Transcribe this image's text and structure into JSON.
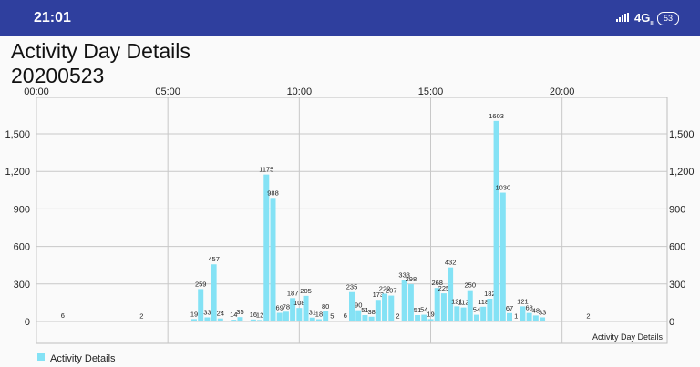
{
  "status_bar": {
    "time": "21:01",
    "network": "4G",
    "network_sub": "ll",
    "battery": "53"
  },
  "page": {
    "title": "Activity Day Details",
    "subtitle": "20200523"
  },
  "chart_data": {
    "type": "bar",
    "x_ticks": [
      "00:00",
      "05:00",
      "10:00",
      "15:00",
      "20:00"
    ],
    "y_ticks": [
      "0",
      "300",
      "600",
      "900",
      "1,200",
      "1,500"
    ],
    "ylim": [
      0,
      1700
    ],
    "xlim_minutes": [
      0,
      1440
    ],
    "description": "Activity Day Details",
    "legend": "Activity Details",
    "color": "#84e2f5",
    "points": [
      {
        "t": "01:00",
        "v": 6
      },
      {
        "t": "04:00",
        "v": 2
      },
      {
        "t": "06:00",
        "v": 19
      },
      {
        "t": "06:15",
        "v": 259
      },
      {
        "t": "06:30",
        "v": 33
      },
      {
        "t": "06:45",
        "v": 457
      },
      {
        "t": "07:00",
        "v": 24
      },
      {
        "t": "07:30",
        "v": 14
      },
      {
        "t": "07:45",
        "v": 35
      },
      {
        "t": "08:15",
        "v": 16
      },
      {
        "t": "08:30",
        "v": 12
      },
      {
        "t": "08:45",
        "v": 1175
      },
      {
        "t": "09:00",
        "v": 988
      },
      {
        "t": "09:15",
        "v": 69
      },
      {
        "t": "09:30",
        "v": 78
      },
      {
        "t": "09:45",
        "v": 187
      },
      {
        "t": "10:00",
        "v": 108
      },
      {
        "t": "10:15",
        "v": 205
      },
      {
        "t": "10:30",
        "v": 31
      },
      {
        "t": "10:45",
        "v": 18
      },
      {
        "t": "11:00",
        "v": 80
      },
      {
        "t": "11:15",
        "v": 5
      },
      {
        "t": "11:45",
        "v": 6
      },
      {
        "t": "12:00",
        "v": 235
      },
      {
        "t": "12:15",
        "v": 90
      },
      {
        "t": "12:30",
        "v": 51
      },
      {
        "t": "12:45",
        "v": 38
      },
      {
        "t": "13:00",
        "v": 173
      },
      {
        "t": "13:15",
        "v": 222
      },
      {
        "t": "13:30",
        "v": 207
      },
      {
        "t": "13:45",
        "v": 2
      },
      {
        "t": "14:00",
        "v": 333
      },
      {
        "t": "14:15",
        "v": 298
      },
      {
        "t": "14:30",
        "v": 51
      },
      {
        "t": "14:45",
        "v": 54
      },
      {
        "t": "15:00",
        "v": 19
      },
      {
        "t": "15:15",
        "v": 268
      },
      {
        "t": "15:30",
        "v": 225
      },
      {
        "t": "15:45",
        "v": 432
      },
      {
        "t": "16:00",
        "v": 121
      },
      {
        "t": "16:15",
        "v": 112
      },
      {
        "t": "16:30",
        "v": 250
      },
      {
        "t": "16:45",
        "v": 54
      },
      {
        "t": "17:00",
        "v": 118
      },
      {
        "t": "17:15",
        "v": 182
      },
      {
        "t": "17:30",
        "v": 1603
      },
      {
        "t": "17:45",
        "v": 1030
      },
      {
        "t": "18:00",
        "v": 67
      },
      {
        "t": "18:15",
        "v": 1
      },
      {
        "t": "18:30",
        "v": 121
      },
      {
        "t": "18:45",
        "v": 68
      },
      {
        "t": "19:00",
        "v": 48
      },
      {
        "t": "19:15",
        "v": 33
      },
      {
        "t": "21:00",
        "v": 2
      }
    ]
  }
}
